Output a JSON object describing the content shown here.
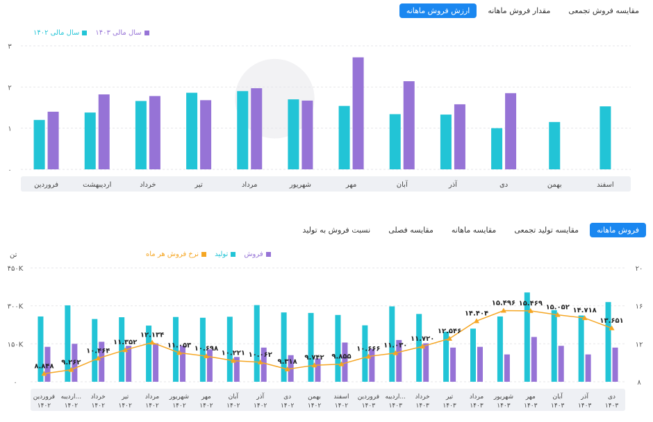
{
  "top_tabs": [
    "ارزش فروش ماهانه",
    "مقدار فروش ماهانه",
    "مقایسه فروش تجمعی"
  ],
  "bottom_tabs": [
    "فروش ماهانه",
    "مقایسه تولید تجمعی",
    "مقایسه ماهانه",
    "مقایسه فصلی",
    "نسبت فروش به تولید"
  ],
  "colors": {
    "teal": "#22c4d6",
    "purple": "#9673d6",
    "orange": "#f5a623",
    "active_tab": "#1a87f0",
    "axis_band": "#eef0f4"
  },
  "unit_left": "تن",
  "chart_data": [
    {
      "type": "bar",
      "categories": [
        "فروردین",
        "اردیبهشت",
        "خرداد",
        "تیر",
        "مرداد",
        "شهریور",
        "مهر",
        "آبان",
        "آذر",
        "دی",
        "بهمن",
        "اسفند"
      ],
      "series": [
        {
          "name": "سال مالی ۱۴۰۲",
          "color": "#22c4d6",
          "values": [
            1.2,
            1.38,
            1.66,
            1.86,
            1.9,
            1.7,
            1.54,
            1.34,
            1.33,
            1.0,
            1.15,
            1.53
          ]
        },
        {
          "name": "سال مالی ۱۴۰۳",
          "color": "#9673d6",
          "values": [
            1.4,
            1.82,
            1.78,
            1.68,
            1.97,
            1.67,
            2.72,
            2.14,
            1.58,
            1.85,
            null,
            null
          ]
        }
      ],
      "yticks": [
        "۰",
        "۱",
        "۲",
        "۳"
      ],
      "ylim": [
        0,
        3
      ]
    },
    {
      "type": "bar-line",
      "categories": [
        "فروردین ۱۴۰۲",
        "اردیبه... ۱۴۰۲",
        "خرداد ۱۴۰۲",
        "تیر ۱۴۰۲",
        "مرداد ۱۴۰۲",
        "شهریور ۱۴۰۲",
        "مهر ۱۴۰۲",
        "آبان ۱۴۰۲",
        "آذر ۱۴۰۲",
        "دی ۱۴۰۲",
        "بهمن ۱۴۰۲",
        "اسفند ۱۴۰۲",
        "فروردین ۱۴۰۳",
        "اردیبه... ۱۴۰۳",
        "خرداد ۱۴۰۳",
        "تیر ۱۴۰۳",
        "مرداد ۱۴۰۳",
        "شهریور ۱۴۰۳",
        "مهر ۱۴۰۳",
        "آبان ۱۴۰۳",
        "آذر ۱۴۰۳",
        "دی ۱۴۰۳"
      ],
      "series": [
        {
          "name": "فروش",
          "color": "#9673d6",
          "axis": "left",
          "values": [
            138000,
            150000,
            158000,
            142000,
            152000,
            142000,
            128000,
            98000,
            135000,
            105000,
            92000,
            155000,
            130000,
            165000,
            152000,
            135000,
            138000,
            108000,
            177000,
            142000,
            108000,
            135000
          ]
        },
        {
          "name": "تولید",
          "color": "#22c4d6",
          "axis": "left",
          "values": [
            258000,
            302000,
            248000,
            255000,
            222000,
            256000,
            253000,
            257000,
            303000,
            274000,
            272000,
            264000,
            223000,
            298000,
            268000,
            198000,
            210000,
            258000,
            353000,
            283000,
            262000,
            315000
          ]
        },
        {
          "name": "نرخ فروش هر ماه",
          "color": "#f5a623",
          "axis": "right",
          "values": [
            8.848,
            9.262,
            10.464,
            11.352,
            12.134,
            11.053,
            10.698,
            10.221,
            10.062,
            9.318,
            9.742,
            9.855,
            10.666,
            11.03,
            11.72,
            12.546,
            14.404,
            15.496,
            15.469,
            15.052,
            14.718,
            13.651
          ],
          "labels": [
            "۸.۸۴۸",
            "۹.۲۶۲",
            "۱۰.۴۶۴",
            "۱۱.۳۵۲",
            "۱۲.۱۳۴",
            "۱۱.۰۵۳",
            "۱۰.۶۹۸",
            "۱۰.۲۲۱",
            "۱۰.۰۶۲",
            "۹.۳۱۸",
            "۹.۷۴۲",
            "۹.۸۵۵",
            "۱۰.۶۶۶",
            "۱۱.۰۳۰",
            "۱۱.۷۲۰",
            "۱۲.۵۴۶",
            "۱۴.۴۰۴",
            "۱۵.۴۹۶",
            "۱۵.۴۶۹",
            "۱۵.۰۵۲",
            "۱۴.۷۱۸",
            "۱۳.۶۵۱"
          ]
        }
      ],
      "ylim_left": [
        0,
        450000
      ],
      "ylim_right": [
        8,
        20
      ],
      "yticks_left": [
        "۰",
        "۱۵۰K",
        "۳۰۰K",
        "۴۵۰K"
      ],
      "yticks_right": [
        "۸",
        "۱۲",
        "۱۶",
        "۲۰"
      ]
    }
  ]
}
